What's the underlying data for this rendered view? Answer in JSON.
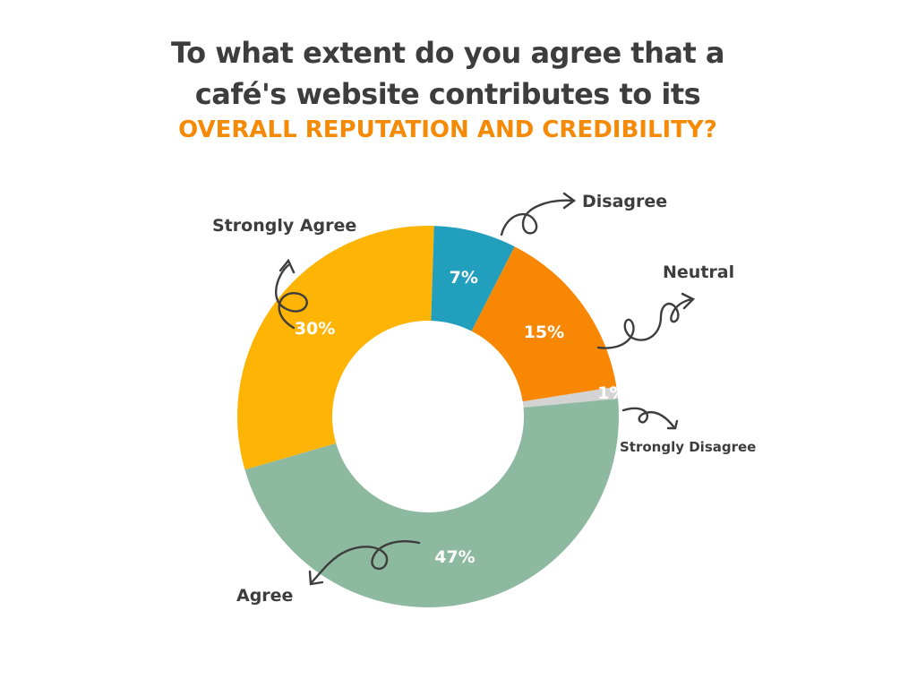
{
  "title": {
    "line1": "To what extent do you agree that a",
    "line2": "café's website contributes to its",
    "line3": "OVERALL REPUTATION AND CREDIBILITY?"
  },
  "chart_data": {
    "type": "pie",
    "subtype": "donut",
    "categories": [
      "Strongly Agree",
      "Disagree",
      "Neutral",
      "Strongly Disagree",
      "Agree"
    ],
    "values": [
      30,
      7,
      15,
      1,
      47
    ],
    "value_labels": [
      "30%",
      "7%",
      "15%",
      "1%",
      "47%"
    ],
    "colors": [
      "#fdb404",
      "#239fbe",
      "#f88804",
      "#d3d3d3",
      "#8db9a0"
    ],
    "value_label_color": "#ffffff",
    "category_label_color": "#3d3d3d"
  }
}
